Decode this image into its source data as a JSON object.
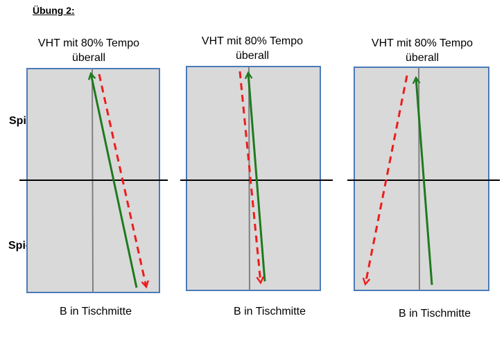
{
  "title": "Übung 2:",
  "players": {
    "top": "Spieler B",
    "bottom": "Spieler A"
  },
  "colors": {
    "table_fill": "#d9d9d9",
    "table_border": "#4a7ab8",
    "net_line": "#000000",
    "center_line": "#808080",
    "solid_arrow": "#1e7a1e",
    "dashed_arrow": "#ee1c1c"
  },
  "diagrams": [
    {
      "heading_line1": "VHT mit 80% Tempo",
      "heading_line2": "überall",
      "caption": "B in Tischmitte"
    },
    {
      "heading_line1": "VHT mit 80% Tempo",
      "heading_line2": "überall",
      "caption": "B in Tischmitte"
    },
    {
      "heading_line1": "VHT mit 80% Tempo",
      "heading_line2": "überall",
      "caption": "B in Tischmitte"
    }
  ]
}
